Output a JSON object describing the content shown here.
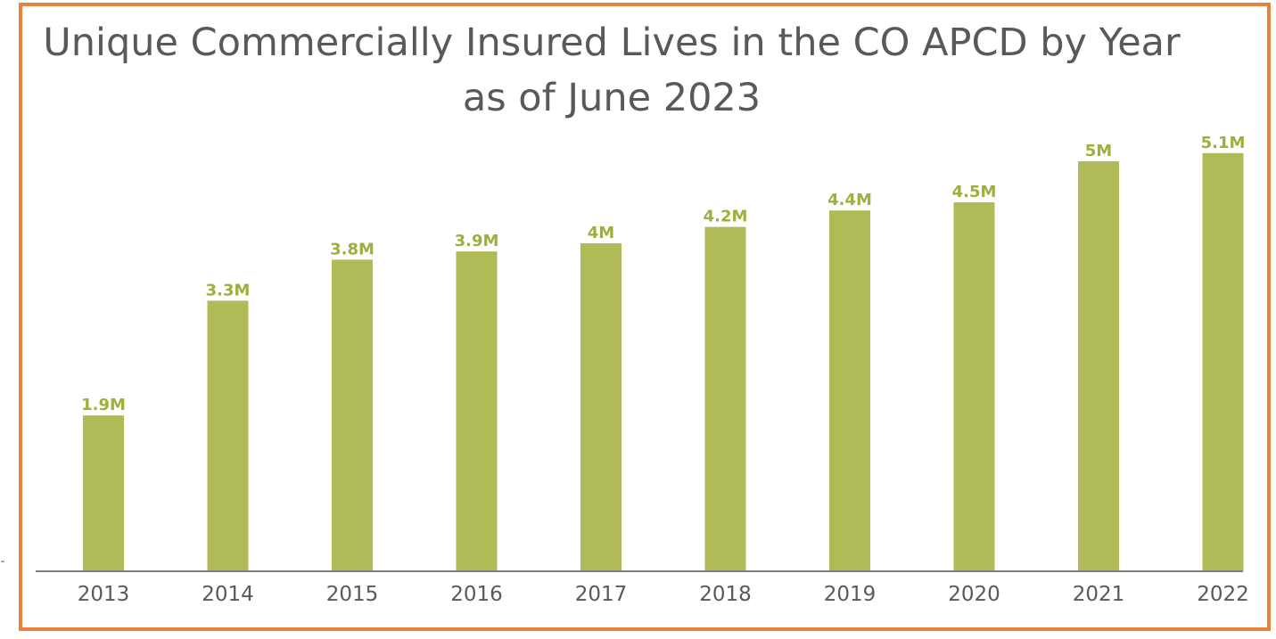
{
  "chart_data": {
    "type": "bar",
    "title": "Unique Commercially Insured Lives in the CO APCD by Year as of June 2023",
    "categories": [
      "2013",
      "2014",
      "2015",
      "2016",
      "2017",
      "2018",
      "2019",
      "2020",
      "2021",
      "2022"
    ],
    "values": [
      1.9,
      3.3,
      3.8,
      3.9,
      4.0,
      4.2,
      4.4,
      4.5,
      5.0,
      5.1
    ],
    "value_labels": [
      "1.9M",
      "3.3M",
      "3.8M",
      "3.9M",
      "4M",
      "4.2M",
      "4.4M",
      "4.5M",
      "5M",
      "5.1M"
    ],
    "unit": "millions",
    "xlabel": "",
    "ylabel": "",
    "ylim": [
      0,
      5.1
    ],
    "grid": false,
    "y_axis_visible": false,
    "legend": "none",
    "colors": {
      "bar": "#B0BA56",
      "value_label": "#9CB03A",
      "title": "#595959",
      "tick_label": "#595959",
      "axis": "#7F7F7F",
      "frame": "#E8823A"
    }
  }
}
